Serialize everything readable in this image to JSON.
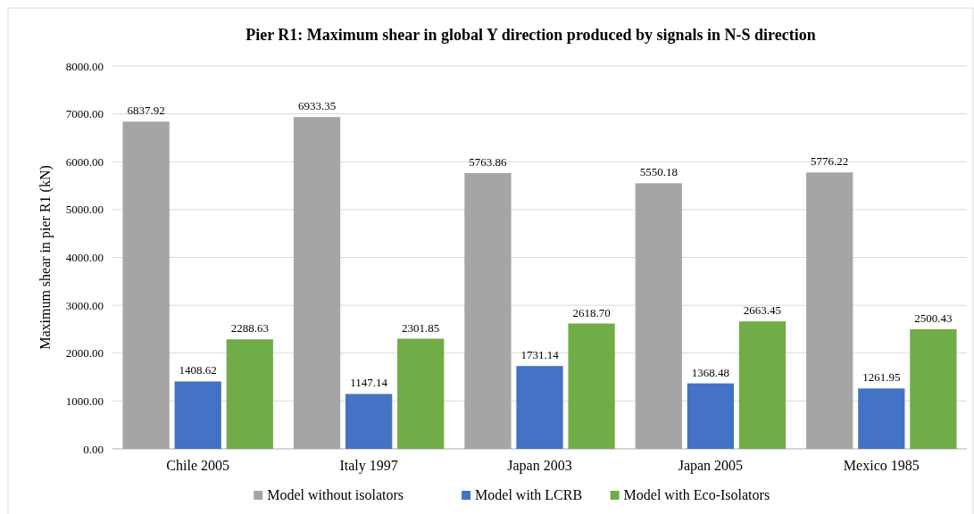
{
  "chart_data": {
    "type": "bar",
    "title": "Pier R1: Maximum shear in global Y direction produced by signals in N-S direction",
    "ylabel": "Maximum shear in pier R1 (kN)",
    "categories": [
      "Chile 2005",
      "Italy 1997",
      "Japan 2003",
      "Japan 2005",
      "Mexico 1985"
    ],
    "series": [
      {
        "name": "Model without isolators",
        "color": "#a5a5a5",
        "values": [
          6837.92,
          6933.35,
          5763.86,
          5550.18,
          5776.22
        ]
      },
      {
        "name": "Model with LCRB",
        "color": "#4472c4",
        "values": [
          1408.62,
          1147.14,
          1731.14,
          1368.48,
          1261.95
        ]
      },
      {
        "name": "Model with Eco-Isolators",
        "color": "#70ad47",
        "values": [
          2288.63,
          2301.85,
          2618.7,
          2663.45,
          2500.43
        ]
      }
    ],
    "ylim": [
      0,
      8000
    ],
    "yticks": [
      {
        "value": 0,
        "label": "0.00"
      },
      {
        "value": 1000,
        "label": "1000.00"
      },
      {
        "value": 2000,
        "label": "2000.00"
      },
      {
        "value": 3000,
        "label": "3000.00"
      },
      {
        "value": 4000,
        "label": "4000.00"
      },
      {
        "value": 5000,
        "label": "5000.00"
      },
      {
        "value": 6000,
        "label": "6000.00"
      },
      {
        "value": 7000,
        "label": "7000.00"
      },
      {
        "value": 8000,
        "label": "8000.00"
      }
    ],
    "value_labels": [
      [
        "6837.92",
        "6933.35",
        "5763.86",
        "5550.18",
        "5776.22"
      ],
      [
        "1408.62",
        "1147.14",
        "1731.14",
        "1368.48",
        "1261.95"
      ],
      [
        "2288.63",
        "2301.85",
        "2618.70",
        "2663.45",
        "2500.43"
      ]
    ],
    "grid": "y",
    "legend": "bottom"
  }
}
